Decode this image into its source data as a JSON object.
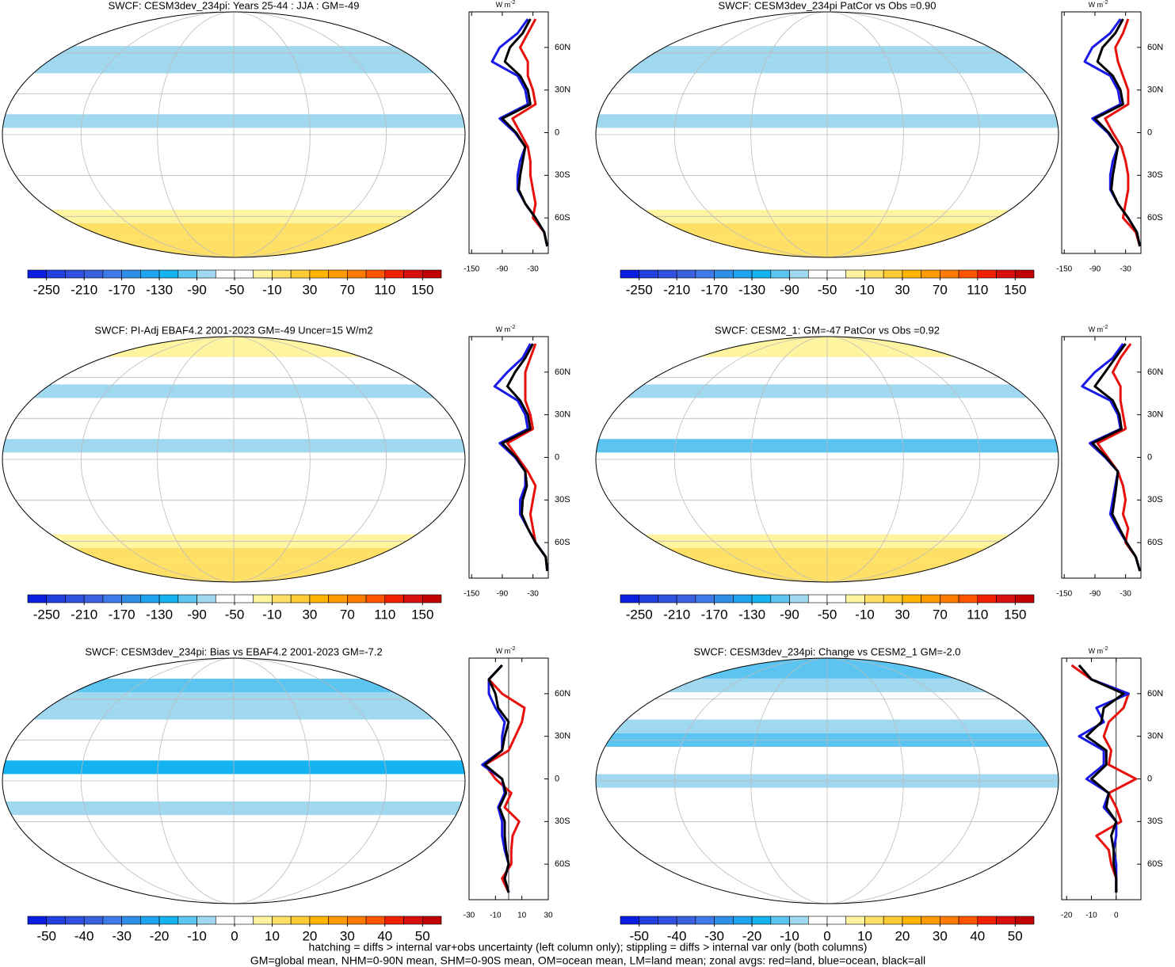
{
  "chart_data": [
    {
      "type": "map",
      "title": "SWCF: CESM3dev_234pi: Years 25-44 : JJA : GM=-49",
      "colorbar": {
        "clim": [
          -270,
          170
        ],
        "ticks": [
          -250,
          -210,
          -170,
          -130,
          -90,
          -50,
          -10,
          30,
          70,
          110,
          150
        ],
        "colors": [
          "#0a1fe0",
          "#2040e0",
          "#3050e0",
          "#3a62e0",
          "#3f7be8",
          "#2f8fe8",
          "#1ea4ee",
          "#14b4f0",
          "#5cc4f0",
          "#a0d8f0",
          "#ffffff",
          "#ffffff",
          "#fff5a0",
          "#ffe066",
          "#ffcc33",
          "#ffb400",
          "#ff9a00",
          "#ff7a00",
          "#ff5500",
          "#f02000",
          "#d81010",
          "#c00000"
        ]
      }
    },
    {
      "type": "line",
      "units": "W m",
      "units_exp": "-2",
      "y": [
        -80,
        -70,
        -60,
        -50,
        -40,
        -30,
        -20,
        -10,
        0,
        10,
        20,
        30,
        40,
        50,
        60,
        70,
        80
      ],
      "ylim": [
        -85,
        85
      ],
      "yticks": [
        {
          "value": -60,
          "label": "60S"
        },
        {
          "value": -30,
          "label": "30S"
        },
        0,
        {
          "value": 30,
          "label": "30N"
        },
        {
          "value": 60,
          "label": "60N"
        }
      ],
      "xlim": [
        -155,
        0
      ],
      "xticks": [
        -150,
        -90,
        -30
      ],
      "series": [
        {
          "color": "#e8100c",
          "values": [
            -2,
            -8,
            -30,
            -25,
            -30,
            -35,
            -35,
            -40,
            -55,
            -70,
            -25,
            -30,
            -40,
            -40,
            -55,
            -40,
            -25
          ]
        },
        {
          "color": "#1a1ae8",
          "values": [
            -2,
            -8,
            -25,
            -45,
            -60,
            -60,
            -55,
            -45,
            -65,
            -95,
            -40,
            -45,
            -60,
            -110,
            -95,
            -60,
            -40
          ]
        },
        {
          "color": "#000000",
          "values": [
            -2,
            -8,
            -25,
            -45,
            -58,
            -55,
            -50,
            -45,
            -63,
            -90,
            -35,
            -40,
            -55,
            -85,
            -75,
            -50,
            -35
          ]
        }
      ]
    },
    {
      "type": "map",
      "title": "SWCF: CESM3dev_234pi PatCor vs Obs =0.90",
      "colorbar": {
        "clim": [
          -270,
          170
        ],
        "ticks": [
          -250,
          -210,
          -170,
          -130,
          -90,
          -50,
          -10,
          30,
          70,
          110,
          150
        ],
        "colors": [
          "#0a1fe0",
          "#2040e0",
          "#3050e0",
          "#3a62e0",
          "#3f7be8",
          "#2f8fe8",
          "#1ea4ee",
          "#14b4f0",
          "#5cc4f0",
          "#a0d8f0",
          "#ffffff",
          "#ffffff",
          "#fff5a0",
          "#ffe066",
          "#ffcc33",
          "#ffb400",
          "#ff9a00",
          "#ff7a00",
          "#ff5500",
          "#f02000",
          "#d81010",
          "#c00000"
        ]
      }
    },
    {
      "type": "line",
      "units": "W m",
      "units_exp": "-2",
      "y": [
        -80,
        -70,
        -60,
        -50,
        -40,
        -30,
        -20,
        -10,
        0,
        10,
        20,
        30,
        40,
        50,
        60,
        70,
        80
      ],
      "ylim": [
        -85,
        85
      ],
      "yticks": [
        {
          "value": -60,
          "label": "60S"
        },
        {
          "value": -30,
          "label": "30S"
        },
        0,
        {
          "value": 30,
          "label": "30N"
        },
        {
          "value": 60,
          "label": "60N"
        }
      ],
      "xlim": [
        -155,
        0
      ],
      "xticks": [
        -150,
        -90,
        -30
      ],
      "series": [
        {
          "color": "#e8100c",
          "values": [
            -2,
            -10,
            -35,
            -30,
            -25,
            -25,
            -30,
            -38,
            -55,
            -70,
            -25,
            -25,
            -35,
            -45,
            -50,
            -35,
            -25
          ]
        },
        {
          "color": "#1a1ae8",
          "values": [
            -2,
            -8,
            -25,
            -45,
            -60,
            -60,
            -55,
            -45,
            -65,
            -95,
            -40,
            -45,
            -60,
            -110,
            -95,
            -60,
            -40
          ]
        },
        {
          "color": "#000000",
          "values": [
            -2,
            -8,
            -25,
            -45,
            -58,
            -55,
            -50,
            -45,
            -63,
            -90,
            -35,
            -40,
            -55,
            -85,
            -75,
            -50,
            -35
          ]
        }
      ]
    },
    {
      "type": "map",
      "title": "SWCF: PI-Adj EBAF4.2 2001-2023 GM=-49 Uncer=15 W/m2",
      "colorbar": {
        "clim": [
          -270,
          170
        ],
        "ticks": [
          -250,
          -210,
          -170,
          -130,
          -90,
          -50,
          -10,
          30,
          70,
          110,
          150
        ],
        "colors": [
          "#0a1fe0",
          "#2040e0",
          "#3050e0",
          "#3a62e0",
          "#3f7be8",
          "#2f8fe8",
          "#1ea4ee",
          "#14b4f0",
          "#5cc4f0",
          "#a0d8f0",
          "#ffffff",
          "#ffffff",
          "#fff5a0",
          "#ffe066",
          "#ffcc33",
          "#ffb400",
          "#ff9a00",
          "#ff7a00",
          "#ff5500",
          "#f02000",
          "#d81010",
          "#c00000"
        ]
      }
    },
    {
      "type": "line",
      "units": "W m",
      "units_exp": "-2",
      "y": [
        -80,
        -70,
        -60,
        -50,
        -40,
        -30,
        -20,
        -10,
        0,
        10,
        20,
        30,
        40,
        50,
        60,
        70,
        80
      ],
      "ylim": [
        -85,
        85
      ],
      "yticks": [
        {
          "value": -60,
          "label": "60S"
        },
        {
          "value": -30,
          "label": "30S"
        },
        0,
        {
          "value": 30,
          "label": "30N"
        },
        {
          "value": 60,
          "label": "60N"
        }
      ],
      "xlim": [
        -155,
        0
      ],
      "xticks": [
        -150,
        -90,
        -30
      ],
      "series": [
        {
          "color": "#e8100c",
          "values": [
            -2,
            -5,
            -25,
            -30,
            -35,
            -30,
            -25,
            -40,
            -60,
            -80,
            -30,
            -35,
            -45,
            -45,
            -45,
            -35,
            -25
          ]
        },
        {
          "color": "#1a1ae8",
          "values": [
            -2,
            -5,
            -25,
            -40,
            -55,
            -55,
            -45,
            -45,
            -65,
            -95,
            -40,
            -45,
            -60,
            -105,
            -80,
            -50,
            -35
          ]
        },
        {
          "color": "#000000",
          "values": [
            -2,
            -5,
            -25,
            -40,
            -52,
            -50,
            -42,
            -45,
            -63,
            -90,
            -35,
            -40,
            -55,
            -80,
            -65,
            -45,
            -30
          ]
        }
      ]
    },
    {
      "type": "map",
      "title": "SWCF: CESM2_1: GM=-47 PatCor vs Obs =0.92",
      "colorbar": {
        "clim": [
          -270,
          170
        ],
        "ticks": [
          -250,
          -210,
          -170,
          -130,
          -90,
          -50,
          -10,
          30,
          70,
          110,
          150
        ],
        "colors": [
          "#0a1fe0",
          "#2040e0",
          "#3050e0",
          "#3a62e0",
          "#3f7be8",
          "#2f8fe8",
          "#1ea4ee",
          "#14b4f0",
          "#5cc4f0",
          "#a0d8f0",
          "#ffffff",
          "#ffffff",
          "#fff5a0",
          "#ffe066",
          "#ffcc33",
          "#ffb400",
          "#ff9a00",
          "#ff7a00",
          "#ff5500",
          "#f02000",
          "#d81010",
          "#c00000"
        ]
      }
    },
    {
      "type": "line",
      "units": "W m",
      "units_exp": "-2",
      "y": [
        -80,
        -70,
        -60,
        -50,
        -40,
        -30,
        -20,
        -10,
        0,
        10,
        20,
        30,
        40,
        50,
        60,
        70,
        80
      ],
      "ylim": [
        -85,
        85
      ],
      "yticks": [
        {
          "value": -60,
          "label": "60S"
        },
        {
          "value": -30,
          "label": "30S"
        },
        0,
        {
          "value": 30,
          "label": "30N"
        },
        {
          "value": 60,
          "label": "60N"
        }
      ],
      "xlim": [
        -155,
        0
      ],
      "xticks": [
        -150,
        -90,
        -30
      ],
      "series": [
        {
          "color": "#e8100c",
          "values": [
            -2,
            -10,
            -30,
            -25,
            -35,
            -30,
            -35,
            -45,
            -65,
            -85,
            -30,
            -35,
            -40,
            -40,
            -55,
            -40,
            -20
          ]
        },
        {
          "color": "#1a1ae8",
          "values": [
            -2,
            -10,
            -28,
            -45,
            -60,
            -55,
            -50,
            -45,
            -70,
            -100,
            -40,
            -45,
            -60,
            -115,
            -90,
            -55,
            -35
          ]
        },
        {
          "color": "#000000",
          "values": [
            -2,
            -10,
            -28,
            -42,
            -56,
            -52,
            -48,
            -45,
            -68,
            -95,
            -38,
            -42,
            -55,
            -90,
            -70,
            -50,
            -30
          ]
        }
      ]
    },
    {
      "type": "map",
      "title": "SWCF: CESM3dev_234pi: Bias vs EBAF4.2 2001-2023 GM=-7.2",
      "colorbar": {
        "clim": [
          -55,
          55
        ],
        "ticks": [
          -50,
          -40,
          -30,
          -20,
          -10,
          0,
          10,
          20,
          30,
          40,
          50
        ],
        "colors": [
          "#0a1fe0",
          "#2040e0",
          "#3050e0",
          "#3a62e0",
          "#3f7be8",
          "#2f8fe8",
          "#1ea4ee",
          "#14b4f0",
          "#5cc4f0",
          "#a0d8f0",
          "#ffffff",
          "#ffffff",
          "#fff5a0",
          "#ffe066",
          "#ffcc33",
          "#ffb400",
          "#ff9a00",
          "#ff7a00",
          "#ff5500",
          "#f02000",
          "#d81010",
          "#c00000"
        ]
      }
    },
    {
      "type": "line",
      "units": "W m",
      "units_exp": "-2",
      "y": [
        -80,
        -70,
        -60,
        -50,
        -40,
        -30,
        -20,
        -10,
        0,
        10,
        20,
        30,
        40,
        50,
        60,
        70,
        80
      ],
      "ylim": [
        -85,
        85
      ],
      "yticks": [
        {
          "value": -60,
          "label": "60S"
        },
        {
          "value": -30,
          "label": "30S"
        },
        0,
        {
          "value": 30,
          "label": "30N"
        },
        {
          "value": 60,
          "label": "60N"
        }
      ],
      "xlim": [
        -30,
        30
      ],
      "xticks": [
        -30,
        -10,
        10,
        30
      ],
      "series": [
        {
          "color": "#e8100c",
          "values": [
            0,
            -5,
            2,
            2,
            3,
            8,
            -3,
            2,
            -10,
            -18,
            0,
            5,
            10,
            12,
            -5,
            -15,
            -5
          ]
        },
        {
          "color": "#1a1ae8",
          "values": [
            0,
            -3,
            0,
            -3,
            -5,
            -5,
            -8,
            -3,
            -5,
            -20,
            -5,
            -5,
            -3,
            -10,
            -15,
            -15,
            -5
          ]
        },
        {
          "color": "#000000",
          "values": [
            0,
            -3,
            0,
            -2,
            -3,
            -3,
            -7,
            -2,
            -5,
            -18,
            -5,
            -3,
            0,
            -8,
            -10,
            -15,
            -5
          ]
        }
      ]
    },
    {
      "type": "map",
      "title": "SWCF: CESM3dev_234pi: Change vs CESM2_1 GM=-2.0",
      "colorbar": {
        "clim": [
          -55,
          55
        ],
        "ticks": [
          -50,
          -40,
          -30,
          -20,
          -10,
          0,
          10,
          20,
          30,
          40,
          50
        ],
        "colors": [
          "#0a1fe0",
          "#2040e0",
          "#3050e0",
          "#3a62e0",
          "#3f7be8",
          "#2f8fe8",
          "#1ea4ee",
          "#14b4f0",
          "#5cc4f0",
          "#a0d8f0",
          "#ffffff",
          "#ffffff",
          "#fff5a0",
          "#ffe066",
          "#ffcc33",
          "#ffb400",
          "#ff9a00",
          "#ff7a00",
          "#ff5500",
          "#f02000",
          "#d81010",
          "#c00000"
        ]
      }
    },
    {
      "type": "line",
      "units": "W m",
      "units_exp": "-2",
      "y": [
        -80,
        -70,
        -60,
        -50,
        -40,
        -30,
        -20,
        -10,
        0,
        10,
        20,
        30,
        40,
        50,
        60,
        70,
        80
      ],
      "ylim": [
        -85,
        85
      ],
      "yticks": [
        {
          "value": -60,
          "label": "60S"
        },
        {
          "value": -30,
          "label": "30S"
        },
        0,
        {
          "value": 30,
          "label": "30N"
        },
        {
          "value": 60,
          "label": "60N"
        }
      ],
      "xlim": [
        -22,
        10
      ],
      "xticks": [
        -20,
        -10,
        0
      ],
      "series": [
        {
          "color": "#e8100c",
          "values": [
            0,
            0,
            -2,
            -3,
            -8,
            2,
            0,
            -3,
            8,
            -3,
            -2,
            -5,
            -3,
            3,
            5,
            -10,
            -18
          ]
        },
        {
          "color": "#1a1ae8",
          "values": [
            0,
            0,
            0,
            -1,
            0,
            0,
            -5,
            -3,
            -12,
            -5,
            -5,
            -15,
            -5,
            -8,
            5,
            -10,
            -15
          ]
        },
        {
          "color": "#000000",
          "values": [
            0,
            0,
            -1,
            -1,
            -2,
            0,
            -4,
            -3,
            -10,
            -4,
            -4,
            -12,
            -6,
            -5,
            3,
            -10,
            -15
          ]
        }
      ]
    }
  ],
  "footer": [
    "hatching = diffs > internal var+obs uncertainty (left column only); stippling = diffs > internal var only (both columns)",
    "GM=global mean, NHM=0-90N mean, SHM=0-90S mean, OM=ocean mean, LM=land mean; zonal avgs: red=land, blue=ocean, black=all"
  ]
}
